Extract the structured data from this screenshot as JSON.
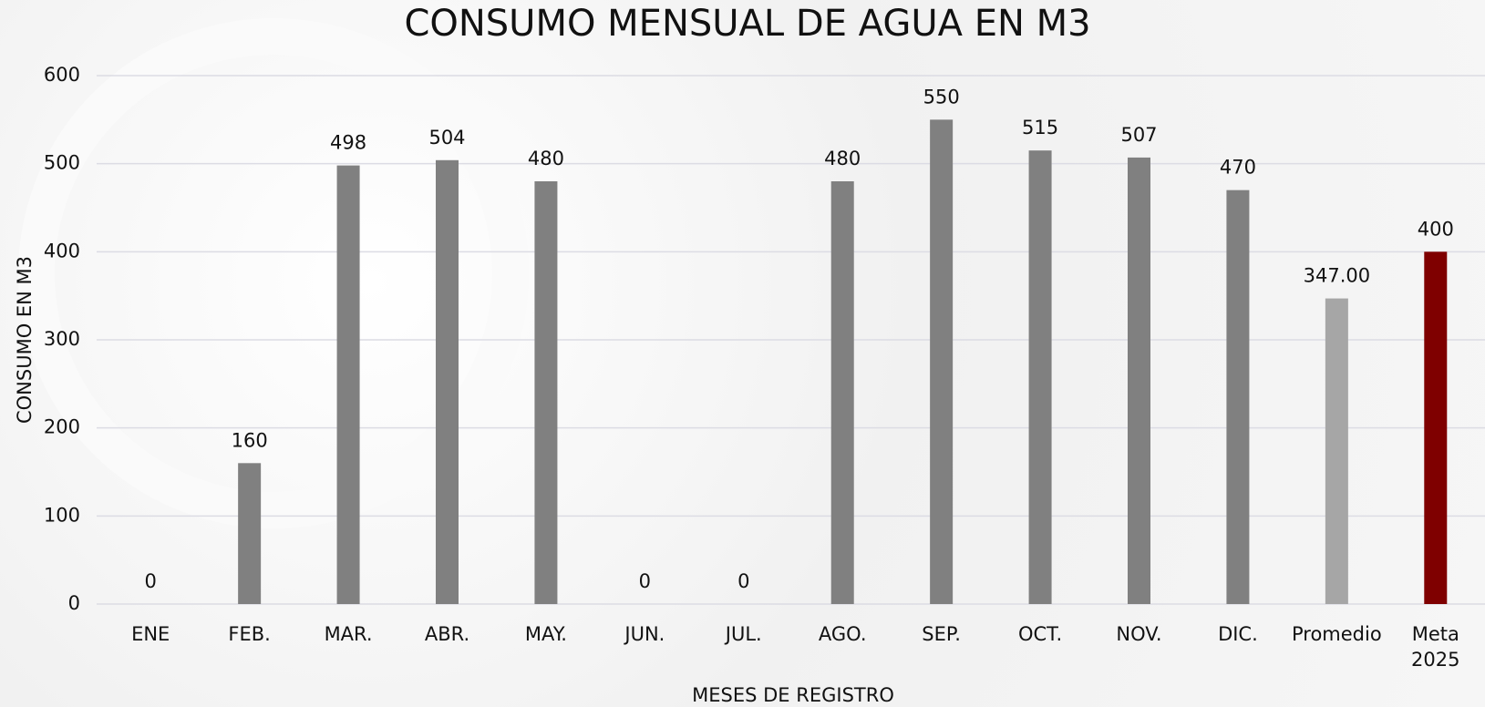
{
  "chart_data": {
    "type": "bar",
    "title": "CONSUMO MENSUAL DE AGUA EN M3",
    "x_label": "MESES DE REGISTRO",
    "y_label": "CONSUMO EN M3",
    "categories": [
      "ENE",
      "FEB.",
      "MAR.",
      "ABR.",
      "MAY.",
      "JUN.",
      "JUL.",
      "AGO.",
      "SEP.",
      "OCT.",
      "NOV.",
      "DIC.",
      "Promedio",
      "Meta 2025"
    ],
    "values": [
      0,
      160,
      498,
      504,
      480,
      0,
      0,
      480,
      550,
      515,
      507,
      470,
      347,
      400
    ],
    "value_labels": [
      "0",
      "160",
      "498",
      "504",
      "480",
      "0",
      "0",
      "480",
      "550",
      "515",
      "507",
      "470",
      "347.00",
      "400"
    ],
    "colors": [
      "#808080",
      "#808080",
      "#808080",
      "#808080",
      "#808080",
      "#808080",
      "#808080",
      "#808080",
      "#808080",
      "#808080",
      "#808080",
      "#808080",
      "#a6a6a6",
      "#7f0000"
    ],
    "ylim": [
      0,
      600
    ],
    "yticks": [
      0,
      100,
      200,
      300,
      400,
      500,
      600
    ],
    "grid": true
  }
}
